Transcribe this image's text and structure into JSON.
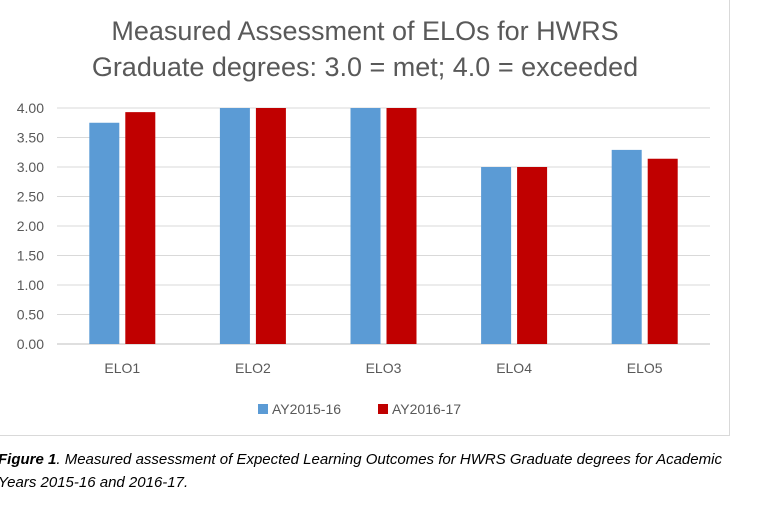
{
  "chart_data": {
    "type": "bar",
    "title": [
      "Measured Assessment of ELOs for HWRS",
      "Graduate degrees: 3.0 = met; 4.0 = exceeded"
    ],
    "categories": [
      "ELO1",
      "ELO2",
      "ELO3",
      "ELO4",
      "ELO5"
    ],
    "series": [
      {
        "name": "AY2015-16",
        "color": "#5b9bd5",
        "values": [
          3.75,
          4.0,
          4.0,
          3.0,
          3.29
        ]
      },
      {
        "name": "AY2016-17",
        "color": "#c00000",
        "values": [
          3.93,
          4.0,
          4.0,
          3.0,
          3.14
        ]
      }
    ],
    "ylim": [
      0,
      4
    ],
    "yticks": [
      "0.00",
      "0.50",
      "1.00",
      "1.50",
      "2.00",
      "2.50",
      "3.00",
      "3.50",
      "4.00"
    ],
    "xlabel": "",
    "ylabel": "",
    "grid": true,
    "legend_position": "bottom"
  },
  "caption": {
    "label": "Figure 1",
    "text": ". Measured assessment of Expected Learning Outcomes for HWRS Graduate degrees for Academic Years 2015-16 and 2016-17."
  }
}
